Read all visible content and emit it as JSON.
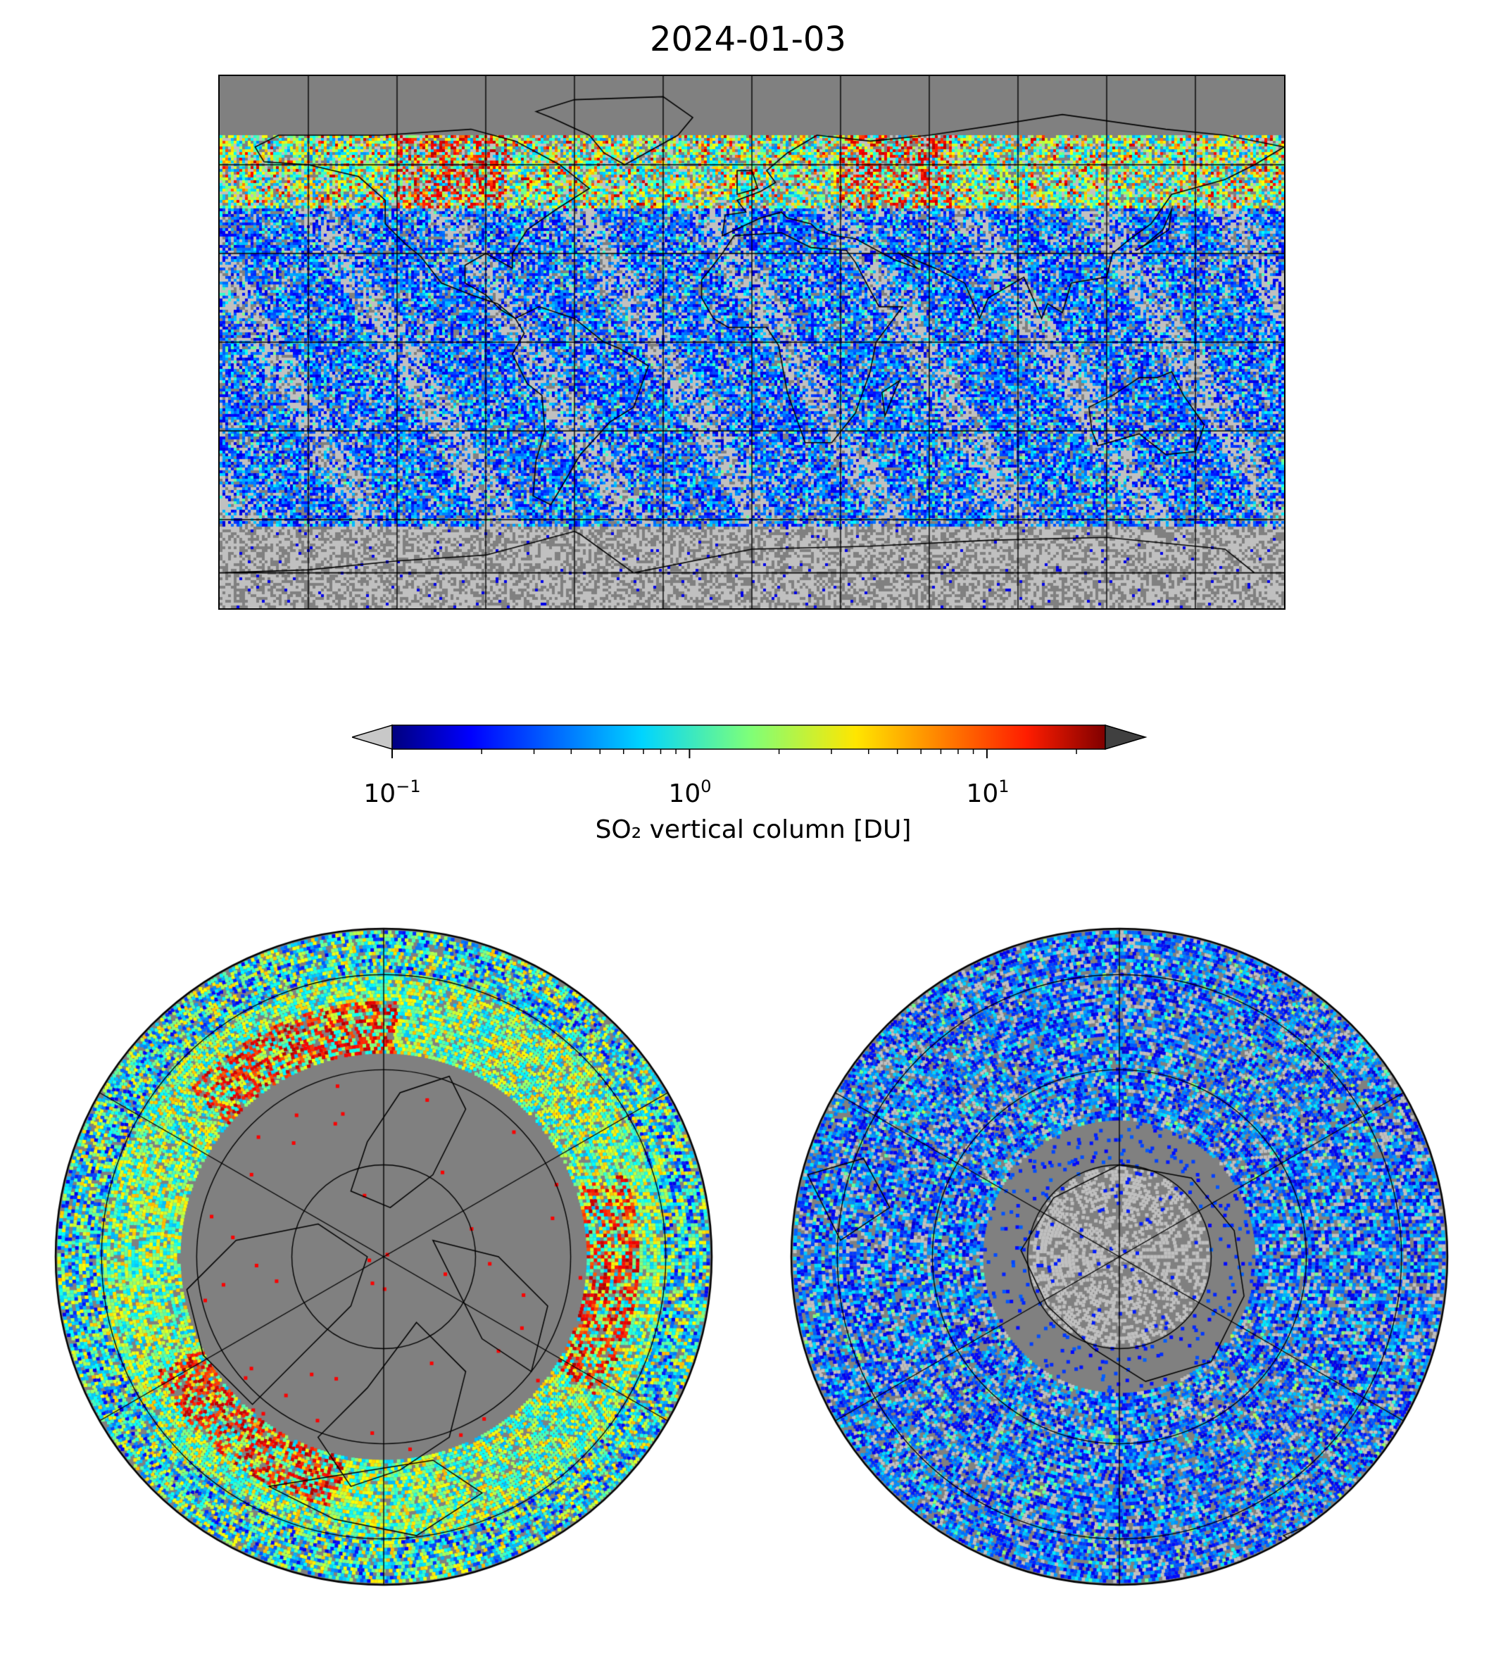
{
  "title": "2024-01-03",
  "colorbar": {
    "label": "SO₂ vertical column [DU]",
    "scale": "log",
    "range": [
      0.1,
      25
    ],
    "ticks": [
      {
        "base": "10",
        "exp": "−1",
        "value": 0.1
      },
      {
        "base": "10",
        "exp": "0",
        "value": 1
      },
      {
        "base": "10",
        "exp": "1",
        "value": 10
      }
    ],
    "colormap": "jet",
    "under_color": "#c8c8c8",
    "over_color": "#404040"
  },
  "colors": {
    "no_data": "#808080",
    "below_range": "#c0c0c0",
    "coastline": "#000000",
    "gridline": "#000000"
  },
  "panels": [
    {
      "name": "global",
      "projection": "plate-carree",
      "gridlines": "30deg lon / 30deg lat"
    },
    {
      "name": "north-polar",
      "projection": "north-polar-stereographic",
      "gridlines": "60deg lon / 20deg lat"
    },
    {
      "name": "south-polar",
      "projection": "south-polar-stereographic",
      "gridlines": "60deg lon / 20deg lat"
    }
  ]
}
